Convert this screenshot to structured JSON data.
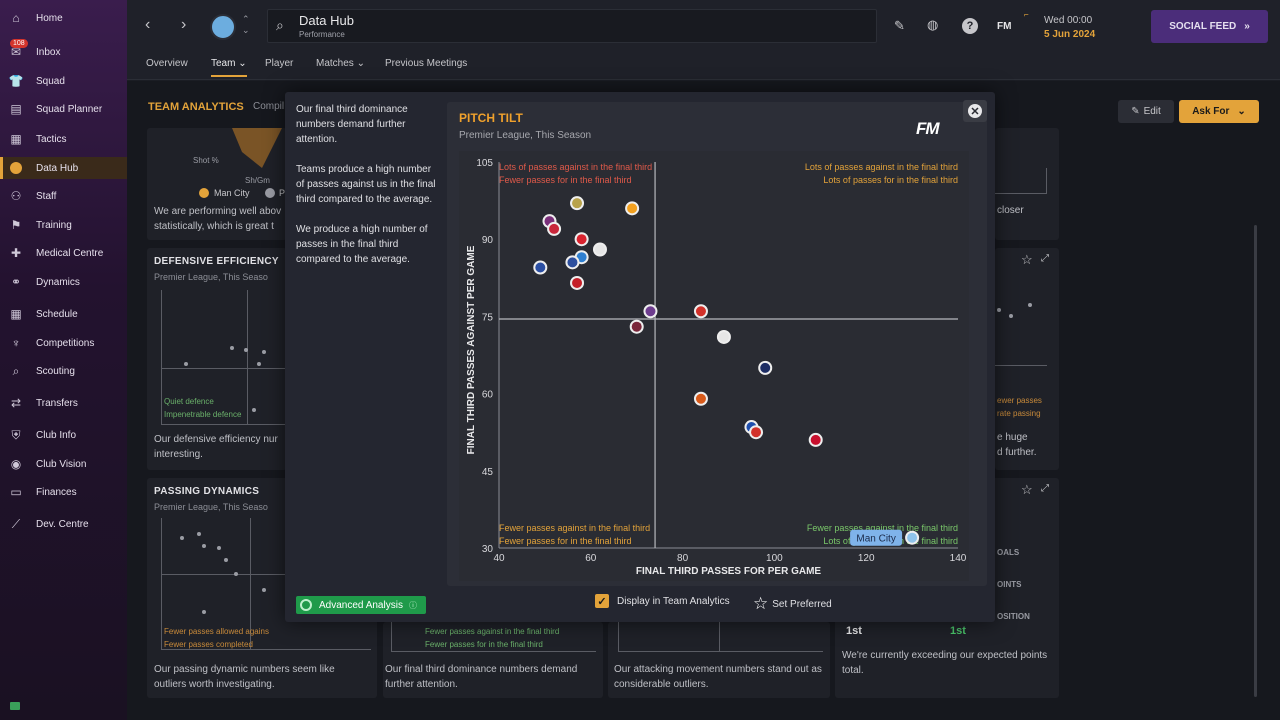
{
  "sidebar": {
    "items": [
      {
        "label": "Home",
        "icon": "home-icon",
        "glyph": "⌂"
      },
      {
        "label": "Inbox",
        "icon": "inbox-icon",
        "glyph": "✉",
        "badge": "108"
      },
      {
        "label": "Squad",
        "icon": "squad-icon",
        "glyph": "👕"
      },
      {
        "label": "Squad Planner",
        "icon": "squad-planner-icon",
        "glyph": "▤"
      },
      {
        "label": "Tactics",
        "icon": "tactics-icon",
        "glyph": "▦"
      },
      {
        "label": "Data Hub",
        "icon": "data-hub-icon",
        "glyph": "●"
      },
      {
        "label": "Staff",
        "icon": "staff-icon",
        "glyph": "⚇"
      },
      {
        "label": "Training",
        "icon": "training-icon",
        "glyph": "⚑"
      },
      {
        "label": "Medical Centre",
        "icon": "medical-icon",
        "glyph": "✚"
      },
      {
        "label": "Dynamics",
        "icon": "dynamics-icon",
        "glyph": "⚭"
      },
      {
        "label": "Schedule",
        "icon": "schedule-icon",
        "glyph": "▦"
      },
      {
        "label": "Competitions",
        "icon": "trophy-icon",
        "glyph": "♆"
      },
      {
        "label": "Scouting",
        "icon": "search-icon",
        "glyph": "⌕"
      },
      {
        "label": "Transfers",
        "icon": "transfers-icon",
        "glyph": "⇄"
      },
      {
        "label": "Club Info",
        "icon": "shield-icon",
        "glyph": "⛨"
      },
      {
        "label": "Club Vision",
        "icon": "club-vision-icon",
        "glyph": "◉"
      },
      {
        "label": "Finances",
        "icon": "finances-icon",
        "glyph": "▭"
      },
      {
        "label": "Dev. Centre",
        "icon": "dev-centre-icon",
        "glyph": "⟋"
      }
    ]
  },
  "header": {
    "title": "Data Hub",
    "subtitle": "Performance",
    "date_day": "Wed 00:00",
    "date_full": "5 Jun 2024",
    "social_feed": "SOCIAL FEED",
    "fm_label": "FM",
    "help_label": "?"
  },
  "tabs": [
    {
      "label": "Overview"
    },
    {
      "label": "Team ⌄"
    },
    {
      "label": "Player"
    },
    {
      "label": "Matches ⌄"
    },
    {
      "label": "Previous Meetings"
    }
  ],
  "page": {
    "section_title": "TEAM ANALYTICS",
    "section_sub": "Compil",
    "edit_label": "Edit",
    "ask_for_label": "Ask For"
  },
  "cards": {
    "top_left": {
      "shot_pct": "Shot %",
      "shgm": "Sh/Gm",
      "legend_1": "Man City",
      "legend_2": "P",
      "text": "We are performing well abov statistically, which is great t"
    },
    "defensive": {
      "title": "DEFENSIVE EFFICIENCY",
      "sub": "Premier League, This Seaso",
      "q1": "Quiet defence",
      "q2": "Impenetrable defence",
      "text": "Our defensive efficiency nur interesting."
    },
    "passing": {
      "title": "PASSING DYNAMICS",
      "sub": "Premier League, This Seaso",
      "q1": "Fewer passes allowed agains",
      "q2": "Fewer passes completed",
      "text": "Our passing dynamic numbers seem like outliers worth investigating."
    },
    "pitch_tilt_bottom": {
      "q1": "Fewer passes against in the final third",
      "q2": "Fewer passes for in the final third",
      "text": "Our final third dominance numbers demand further attention."
    },
    "attacking": {
      "text": "Our attacking movement numbers stand out as considerable outliers."
    },
    "right_mid": {
      "text_a": "closer",
      "q1": "ewer passes",
      "q2": "rate passing",
      "text_b": "e huge",
      "text_c": "d further."
    },
    "right_bottom": {
      "row1": "OALS",
      "row2": "OINTS",
      "row3": "OSITION",
      "pos_a": "1st",
      "pos_b": "1st",
      "text": "We're currently exceeding our expected points total."
    }
  },
  "overlay": {
    "left_paragraphs": [
      "Our final third dominance numbers demand further attention.",
      "Teams produce a high number of passes against us in the final third compared to the average.",
      "We produce a high number of passes in the final third compared to the average."
    ],
    "advanced_label": "Advanced Analysis",
    "display_label": "Display in Team Analytics",
    "set_preferred_label": "Set Preferred",
    "fm_logo": "FM"
  },
  "chart_data": {
    "type": "scatter",
    "title": "PITCH TILT",
    "subtitle": "Premier League, This Season",
    "xlabel": "FINAL THIRD PASSES FOR PER GAME",
    "ylabel": "FINAL THIRD PASSES AGAINST PER GAME",
    "xlim": [
      40,
      140
    ],
    "ylim": [
      30,
      105
    ],
    "xticks": [
      40,
      60,
      80,
      100,
      120,
      140
    ],
    "yticks": [
      30,
      45,
      60,
      75,
      90,
      105
    ],
    "x_avg": 74,
    "y_avg": 74.5,
    "quadrants": {
      "top_left": [
        "Lots of passes against in the final third",
        "Fewer passes for in the final third"
      ],
      "top_right": [
        "Lots of passes against in the final third",
        "Lots of passes for in the final third"
      ],
      "bottom_left": [
        "Fewer passes against in the final third",
        "Fewer passes for in the final third"
      ],
      "bottom_right": [
        "Fewer passes against in the final third",
        "Lots of passes for in the final third"
      ]
    },
    "highlight_label": "Man City",
    "points": [
      {
        "x": 57,
        "y": 97,
        "color": "#b8a24a"
      },
      {
        "x": 69,
        "y": 96,
        "color": "#f2a01f"
      },
      {
        "x": 51,
        "y": 93.5,
        "color": "#7a2f7a"
      },
      {
        "x": 52,
        "y": 92,
        "color": "#c8263a"
      },
      {
        "x": 58,
        "y": 90,
        "color": "#d9232f"
      },
      {
        "x": 62,
        "y": 88,
        "color": "#e6e6e6"
      },
      {
        "x": 58,
        "y": 86.5,
        "color": "#2f7fd0"
      },
      {
        "x": 56,
        "y": 85.5,
        "color": "#2d4f9e"
      },
      {
        "x": 49,
        "y": 84.5,
        "color": "#2b4fa3"
      },
      {
        "x": 57,
        "y": 81.5,
        "color": "#c42029"
      },
      {
        "x": 73,
        "y": 76,
        "color": "#6e3d8f"
      },
      {
        "x": 84,
        "y": 76,
        "color": "#d2312a"
      },
      {
        "x": 70,
        "y": 73,
        "color": "#7a263a"
      },
      {
        "x": 89,
        "y": 71,
        "color": "#e6e6e6"
      },
      {
        "x": 98,
        "y": 65,
        "color": "#1d2d64"
      },
      {
        "x": 84,
        "y": 59,
        "color": "#d85a1a"
      },
      {
        "x": 95,
        "y": 53.5,
        "color": "#1f4fae"
      },
      {
        "x": 96,
        "y": 52.5,
        "color": "#d2312a"
      },
      {
        "x": 109,
        "y": 51,
        "color": "#c8102e"
      },
      {
        "x": 130,
        "y": 32,
        "color": "#8fc3ea"
      }
    ]
  }
}
